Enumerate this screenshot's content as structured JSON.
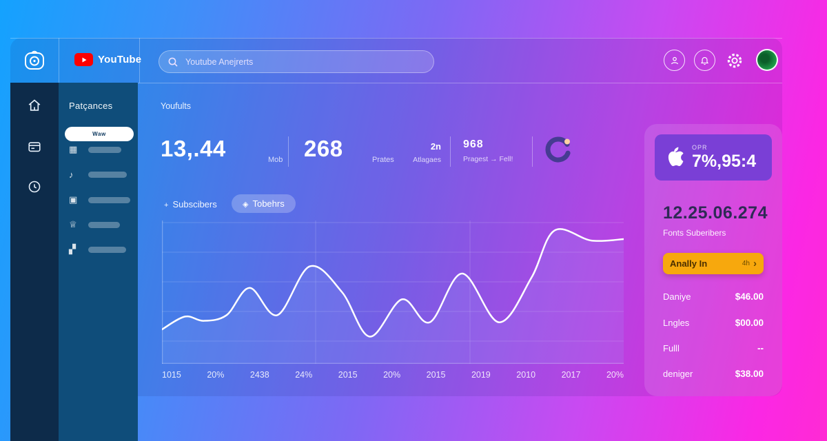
{
  "colors": {
    "brand_red": "#ff0000",
    "card_purple": "#7a3fd6",
    "accent_orange": "#f7a80d",
    "avatar_green": "#1fa04b",
    "sidebar_navy": "#0d2b4a",
    "sidebar_teal": "#0f4d7a"
  },
  "header": {
    "brand": "YouTube",
    "search_text": "Youtube Anejrerts"
  },
  "sidebar": {
    "title": "Patçances",
    "active_pill": "Waw",
    "items": [
      {
        "icon": "grid-icon",
        "glyph": "▦"
      },
      {
        "icon": "music-icon",
        "glyph": "♪"
      },
      {
        "icon": "library-icon",
        "glyph": "▣"
      },
      {
        "icon": "crown-icon",
        "glyph": "♕"
      },
      {
        "icon": "stats-icon",
        "glyph": "▞"
      }
    ]
  },
  "main": {
    "section_title": "Youfults",
    "stats": [
      {
        "value": "13,.44",
        "label": "Mob"
      },
      {
        "value": "268",
        "label": "Prates"
      },
      {
        "value": "2n",
        "label": "Atlagaes"
      },
      {
        "value": "968",
        "label": "Pragest → Fell!"
      }
    ],
    "legend": [
      {
        "icon": "+",
        "label": "Subscibers"
      },
      {
        "icon": "◈",
        "label": "Tobehrs"
      }
    ]
  },
  "chart_data": {
    "type": "line",
    "title": "",
    "xlabel": "",
    "ylabel": "",
    "ylim": [
      0,
      100
    ],
    "grid": "on",
    "legend_position": "top-left",
    "x_labels": [
      "1015",
      "20%",
      "2438",
      "24%",
      "2015",
      "20%",
      "2015",
      "2019",
      "2010",
      "2017",
      "20%"
    ],
    "series": [
      {
        "name": "Subscibers",
        "x_frac": [
          0.0,
          0.05,
          0.09,
          0.14,
          0.19,
          0.25,
          0.32,
          0.39,
          0.45,
          0.52,
          0.58,
          0.65,
          0.73,
          0.8,
          0.85,
          0.93,
          1.0
        ],
        "values": [
          24,
          33,
          30,
          34,
          53,
          34,
          68,
          50,
          19,
          45,
          29,
          63,
          29,
          60,
          93,
          86,
          87
        ]
      }
    ],
    "line_color": "#ffffff",
    "area_fill": "rgba(150,180,255,0.15)"
  },
  "panel": {
    "card": {
      "tag": "OPR",
      "value": "7%,95:4"
    },
    "headline": "12.25.06.274",
    "subtitle": "Fonts Suberibers",
    "cta": {
      "label": "Anally In",
      "meta": "4h",
      "chevron": "›"
    },
    "rows": [
      {
        "name": "Daniye",
        "value": "$46.00"
      },
      {
        "name": "Lngles",
        "value": "$00.00"
      },
      {
        "name": "Fulll",
        "value": "--"
      },
      {
        "name": "deniger",
        "value": "$38.00"
      }
    ]
  }
}
